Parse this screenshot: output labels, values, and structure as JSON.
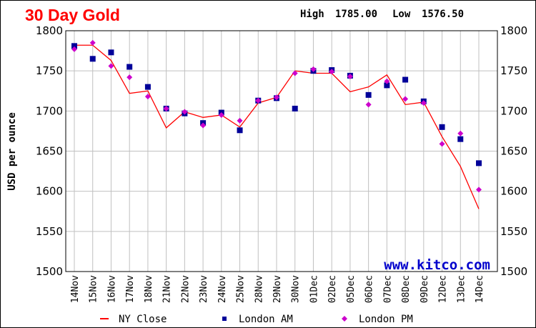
{
  "header": {
    "title": "30 Day Gold",
    "high_label": "High",
    "high_value": "1785.00",
    "low_label": "Low",
    "low_value": "1576.50",
    "watermark": "www.kitco.com"
  },
  "colors": {
    "title": "#ff0000",
    "ny_close": "#ff0000",
    "london_am": "#000099",
    "london_pm": "#cc00cc",
    "grid": "#c0c0c0",
    "watermark": "#0000cc"
  },
  "chart_data": {
    "type": "line",
    "title": "30 Day Gold",
    "ylabel": "USD per ounce",
    "xlabel": "",
    "ylim": [
      1500,
      1800
    ],
    "yticks": [
      1500,
      1550,
      1600,
      1650,
      1700,
      1750,
      1800
    ],
    "grid": true,
    "legend_position": "bottom",
    "categories": [
      "14Nov",
      "15Nov",
      "16Nov",
      "17Nov",
      "18Nov",
      "21Nov",
      "22Nov",
      "23Nov",
      "24Nov",
      "25Nov",
      "28Nov",
      "29Nov",
      "30Nov",
      "01Dec",
      "02Dec",
      "05Dec",
      "06Dec",
      "07Dec",
      "08Dec",
      "09Dec",
      "12Dec",
      "13Dec",
      "14Dec"
    ],
    "series": [
      {
        "name": "NY Close",
        "marker": "line",
        "values": [
          1782,
          1782,
          1763,
          1722,
          1725,
          1679,
          1699,
          1692,
          1695,
          1680,
          1710,
          1717,
          1750,
          1747,
          1747,
          1724,
          1730,
          1745,
          1708,
          1711,
          1668,
          1631,
          1578
        ]
      },
      {
        "name": "London AM",
        "marker": "square",
        "values": [
          1781,
          1765,
          1773,
          1755,
          1730,
          1703,
          1697,
          1685,
          1698,
          1676,
          1713,
          1716,
          1703,
          1750,
          1751,
          1744,
          1720,
          1732,
          1739,
          1712,
          1680,
          1665,
          1635
        ]
      },
      {
        "name": "London PM",
        "marker": "diamond",
        "values": [
          1777,
          1785,
          1756,
          1742,
          1718,
          1703,
          1699,
          1682,
          1695,
          1688,
          1713,
          1717,
          1747,
          1752,
          1749,
          1743,
          1708,
          1737,
          1715,
          1710,
          1659,
          1672,
          1602
        ]
      }
    ]
  }
}
